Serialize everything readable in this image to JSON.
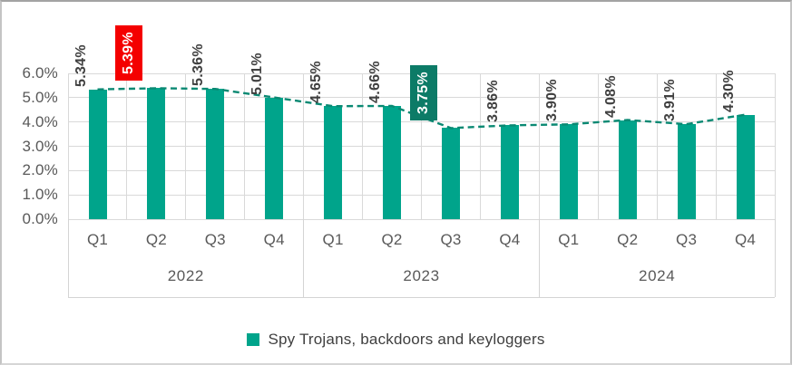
{
  "chart_data": {
    "type": "bar",
    "title": "",
    "legend": "Spy Trojans, backdoors and keyloggers",
    "ylim": [
      0,
      6
    ],
    "y_ticks": [
      "6.0%",
      "5.0%",
      "4.0%",
      "3.0%",
      "2.0%",
      "1.0%",
      "0.0%"
    ],
    "grid": true,
    "legend_position": "bottom-center",
    "groups": [
      {
        "year": "2022",
        "categories": [
          "Q1",
          "Q2",
          "Q3",
          "Q4"
        ],
        "values": [
          5.34,
          5.39,
          5.36,
          5.01
        ],
        "labels": [
          "5.34%",
          "5.39%",
          "5.36%",
          "5.01%"
        ]
      },
      {
        "year": "2023",
        "categories": [
          "Q1",
          "Q2",
          "Q3",
          "Q4"
        ],
        "values": [
          4.65,
          4.66,
          3.75,
          3.86
        ],
        "labels": [
          "4.65%",
          "4.66%",
          "3.75%",
          "3.86%"
        ]
      },
      {
        "year": "2024",
        "categories": [
          "Q1",
          "Q2",
          "Q3",
          "Q4"
        ],
        "values": [
          3.9,
          4.08,
          3.91,
          4.3
        ],
        "labels": [
          "3.90%",
          "4.08%",
          "3.91%",
          "4.30%"
        ]
      }
    ],
    "highlights": [
      {
        "group": 0,
        "index": 1,
        "label": "5.39%",
        "style": "max",
        "bg": "#F40000",
        "fg": "#FFFFFF"
      },
      {
        "group": 1,
        "index": 2,
        "label": "3.75%",
        "style": "min",
        "bg": "#0C7B67",
        "fg": "#FFFFFF"
      }
    ],
    "trend_line": {
      "type": "dashed",
      "follows": "values",
      "color": "#0A8973"
    },
    "colors": {
      "bar": "#00A48B",
      "gridline": "#D9D9D9",
      "axis_text": "#595959",
      "label_text": "#404040",
      "trend": "#0A8973"
    }
  }
}
